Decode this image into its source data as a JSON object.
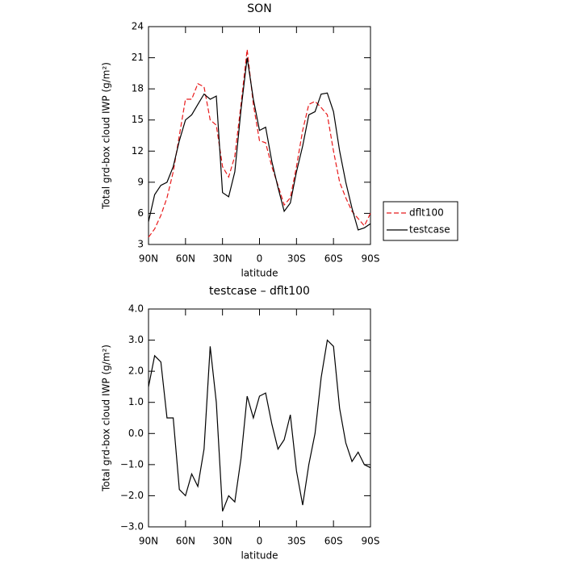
{
  "chart_data": [
    {
      "type": "line",
      "title": "SON",
      "xlabel": "latitude",
      "ylabel": "Total grd-box cloud IWP (g/m²)",
      "x": [
        90,
        85,
        80,
        75,
        70,
        65,
        60,
        55,
        50,
        45,
        40,
        35,
        30,
        25,
        20,
        15,
        10,
        5,
        0,
        -5,
        -10,
        -15,
        -20,
        -25,
        -30,
        -35,
        -40,
        -45,
        -50,
        -55,
        -60,
        -65,
        -70,
        -75,
        -80,
        -85,
        -90
      ],
      "xlim": [
        90,
        -90
      ],
      "xticks": [
        {
          "value": 90,
          "label": "90N"
        },
        {
          "value": 60,
          "label": "60N"
        },
        {
          "value": 30,
          "label": "30N"
        },
        0,
        {
          "value": -30,
          "label": "30S"
        },
        {
          "value": -60,
          "label": "60S"
        },
        {
          "value": -90,
          "label": "90S"
        }
      ],
      "ylim": [
        3,
        24
      ],
      "yticks": [
        3,
        6,
        9,
        12,
        15,
        18,
        21,
        24
      ],
      "legend": "right",
      "series": [
        {
          "name": "dflt100",
          "color": "#e8191a",
          "dash": true,
          "values": [
            3.7,
            4.5,
            5.8,
            7.5,
            10.0,
            13.5,
            17.0,
            17.0,
            18.5,
            18.2,
            15.0,
            14.5,
            10.5,
            9.5,
            11.5,
            16.5,
            21.8,
            16.5,
            13.0,
            12.8,
            10.5,
            8.7,
            6.8,
            7.5,
            10.5,
            14.0,
            16.5,
            16.8,
            16.2,
            15.5,
            12.0,
            9.0,
            7.5,
            6.2,
            5.5,
            4.8,
            6.0
          ]
        },
        {
          "name": "testcase",
          "color": "#000000",
          "dash": false,
          "values": [
            5.2,
            7.8,
            8.7,
            9.0,
            10.5,
            13.0,
            15.0,
            15.5,
            16.5,
            17.5,
            17.0,
            17.3,
            8.0,
            7.6,
            10.0,
            16.0,
            21.0,
            17.0,
            14.0,
            14.3,
            11.0,
            8.5,
            6.2,
            7.0,
            10.0,
            12.5,
            15.5,
            15.8,
            17.5,
            17.6,
            15.8,
            12.0,
            9.0,
            6.5,
            4.4,
            4.6,
            5.0
          ]
        }
      ]
    },
    {
      "type": "line",
      "title": "testcase – dflt100",
      "xlabel": "latitude",
      "ylabel": "Total grd-box cloud IWP (g/m²)",
      "x": [
        90,
        85,
        80,
        75,
        70,
        65,
        60,
        55,
        50,
        45,
        40,
        35,
        30,
        25,
        20,
        15,
        10,
        5,
        0,
        -5,
        -10,
        -15,
        -20,
        -25,
        -30,
        -35,
        -40,
        -45,
        -50,
        -55,
        -60,
        -65,
        -70,
        -75,
        -80,
        -85,
        -90
      ],
      "xlim": [
        90,
        -90
      ],
      "xticks": [
        {
          "value": 90,
          "label": "90N"
        },
        {
          "value": 60,
          "label": "60N"
        },
        {
          "value": 30,
          "label": "30N"
        },
        0,
        {
          "value": -30,
          "label": "30S"
        },
        {
          "value": -60,
          "label": "60S"
        },
        {
          "value": -90,
          "label": "90S"
        }
      ],
      "ylim": [
        -3,
        4
      ],
      "yticks": [
        {
          "value": -3,
          "label": "−3.0"
        },
        {
          "value": -2,
          "label": "−2.0"
        },
        {
          "value": -1,
          "label": "−1.0"
        },
        {
          "value": 0,
          "label": "0.0"
        },
        {
          "value": 1,
          "label": "1.0"
        },
        {
          "value": 2,
          "label": "2.0"
        },
        {
          "value": 3,
          "label": "3.0"
        },
        {
          "value": 4,
          "label": "4.0"
        }
      ],
      "series": [
        {
          "color": "#000000",
          "dash": false,
          "values": [
            1.5,
            2.5,
            2.3,
            0.5,
            0.5,
            -1.8,
            -2.0,
            -1.3,
            -1.7,
            -0.5,
            2.8,
            1.0,
            -2.5,
            -2.0,
            -2.2,
            -0.8,
            1.2,
            0.5,
            1.2,
            1.3,
            0.3,
            -0.5,
            -0.2,
            0.6,
            -1.2,
            -2.3,
            -1.0,
            0.0,
            1.8,
            3.0,
            2.8,
            0.8,
            -0.3,
            -0.9,
            -0.6,
            -1.0,
            -1.1
          ]
        }
      ]
    }
  ]
}
